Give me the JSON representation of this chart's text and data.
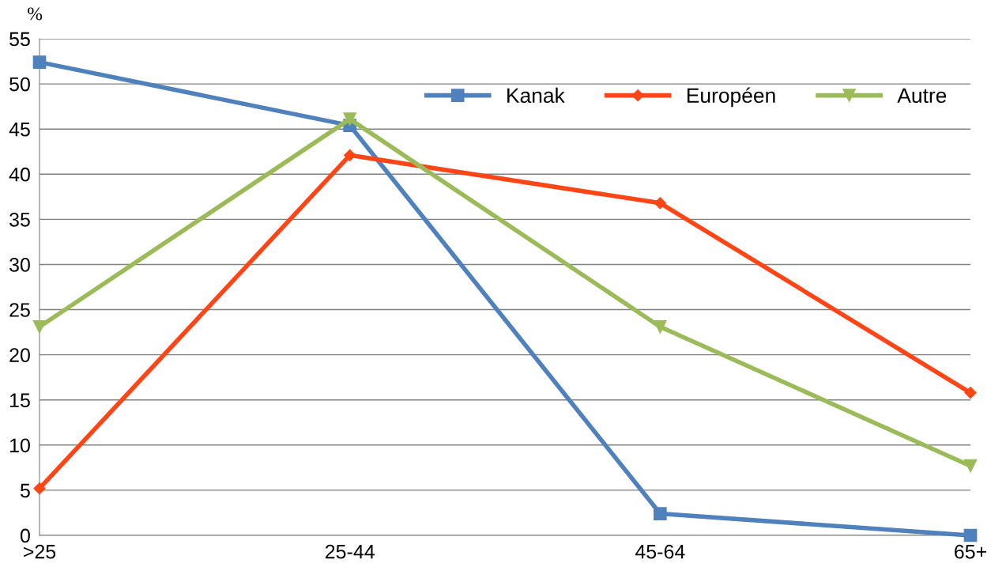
{
  "chart_data": {
    "type": "line",
    "ylabel": "%",
    "categories": [
      ">25",
      "25-44",
      "45-64",
      "65+"
    ],
    "series": [
      {
        "name": "Kanak",
        "color": "#4f81bd",
        "marker": "square",
        "values": [
          52.4,
          45.4,
          2.4,
          0
        ]
      },
      {
        "name": "Européen",
        "color": "#fe4516",
        "marker": "diamond",
        "values": [
          5.2,
          42.1,
          36.8,
          15.8
        ]
      },
      {
        "name": "Autre",
        "color": "#9bbb59",
        "marker": "triangle",
        "values": [
          23.1,
          46.1,
          23.1,
          7.7
        ]
      }
    ],
    "ylim": [
      0,
      55
    ],
    "yticks": [
      0,
      5,
      10,
      15,
      20,
      25,
      30,
      35,
      40,
      45,
      50,
      55
    ],
    "grid": "y",
    "legend": "top right",
    "line_style": "solid"
  }
}
